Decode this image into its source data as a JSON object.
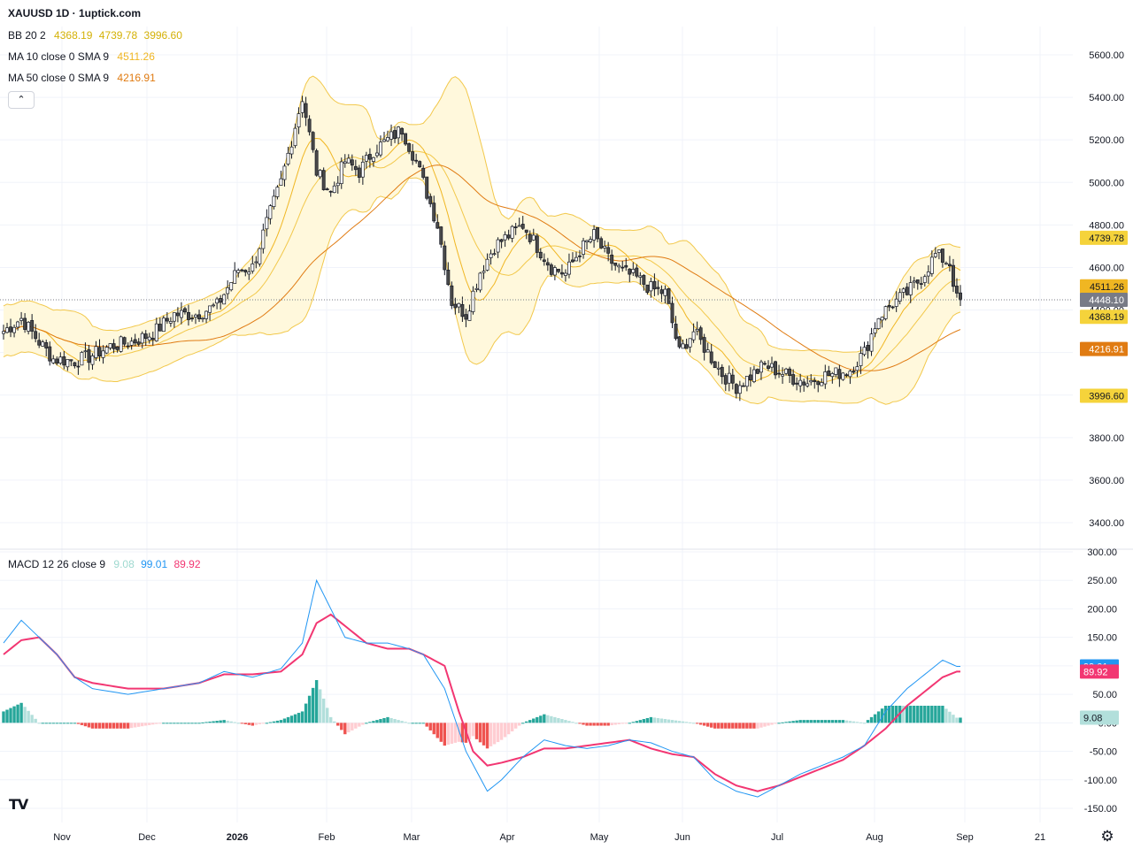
{
  "header": {
    "title": "XAUUSD 1D · 1uptick.com"
  },
  "legends": {
    "bb": {
      "label": "BB 20 2",
      "values": [
        "4368.19",
        "4739.78",
        "3996.60"
      ],
      "color": "#d4b106"
    },
    "ma10": {
      "label": "MA 10 close 0 SMA 9",
      "value": "4511.26",
      "color": "#f0b622"
    },
    "ma50": {
      "label": "MA 50 close 0 SMA 9",
      "value": "4216.91",
      "color": "#e07b12"
    },
    "macd": {
      "label": "MACD 12 26 close 9",
      "values": [
        "9.08",
        "99.01",
        "89.92"
      ],
      "colors": [
        "#9fd9d0",
        "#2196f3",
        "#f23672"
      ]
    }
  },
  "controls": {
    "collapse_icon": "chevron-up-icon",
    "logo": "tradingview-logo",
    "settings_icon": "gear-icon",
    "collapse_glyph": "⌃",
    "logo_text": "TV",
    "gear_glyph": "⚙"
  },
  "colors": {
    "up": "#ffffff",
    "down": "#4a4a4a",
    "wick": "#131722",
    "band_fill": "#fff8dc",
    "band_line": "#f2c84b",
    "ma10": "#f0b622",
    "ma50": "#e07b12",
    "hist_pos_strong": "#26a69a",
    "hist_pos_weak": "#b2dfdb",
    "hist_neg_strong": "#ef5350",
    "hist_neg_weak": "#ffcdd2"
  },
  "chart_data": [
    {
      "type": "candlestick",
      "title": "XAUUSD 1D",
      "ylim": [
        3400,
        5600
      ],
      "yticks": [
        "5600.00",
        "5400.00",
        "5200.00",
        "5000.00",
        "4800.00",
        "4600.00",
        "4400.00",
        "4200.00",
        "4000.00",
        "3800.00",
        "3600.00",
        "3400.00"
      ],
      "xticks": [
        "Nov",
        "Dec",
        "2026",
        "Feb",
        "Mar",
        "Apr",
        "May",
        "Jun",
        "Jul",
        "Aug",
        "Sep",
        "21"
      ],
      "series_keypoints": {
        "close": [
          [
            0,
            4300
          ],
          [
            5,
            4360
          ],
          [
            10,
            4250
          ],
          [
            14,
            4170
          ],
          [
            20,
            4160
          ],
          [
            24,
            4180
          ],
          [
            30,
            4230
          ],
          [
            36,
            4250
          ],
          [
            42,
            4290
          ],
          [
            48,
            4380
          ],
          [
            54,
            4380
          ],
          [
            60,
            4420
          ],
          [
            66,
            4590
          ],
          [
            70,
            4600
          ],
          [
            74,
            4810
          ],
          [
            78,
            5000
          ],
          [
            84,
            5400
          ],
          [
            88,
            5050
          ],
          [
            92,
            4950
          ],
          [
            96,
            5100
          ],
          [
            100,
            5050
          ],
          [
            104,
            5150
          ],
          [
            108,
            5200
          ],
          [
            112,
            5250
          ],
          [
            116,
            5100
          ],
          [
            122,
            4800
          ],
          [
            126,
            4440
          ],
          [
            130,
            4380
          ],
          [
            134,
            4580
          ],
          [
            138,
            4700
          ],
          [
            142,
            4750
          ],
          [
            146,
            4800
          ],
          [
            150,
            4700
          ],
          [
            154,
            4600
          ],
          [
            158,
            4570
          ],
          [
            162,
            4680
          ],
          [
            166,
            4750
          ],
          [
            170,
            4640
          ],
          [
            174,
            4580
          ],
          [
            178,
            4550
          ],
          [
            182,
            4500
          ],
          [
            186,
            4480
          ],
          [
            190,
            4200
          ],
          [
            194,
            4300
          ],
          [
            198,
            4200
          ],
          [
            202,
            4100
          ],
          [
            206,
            4040
          ],
          [
            210,
            4090
          ],
          [
            214,
            4140
          ],
          [
            218,
            4110
          ],
          [
            222,
            4080
          ],
          [
            226,
            4060
          ],
          [
            230,
            4090
          ],
          [
            234,
            4100
          ],
          [
            238,
            4120
          ],
          [
            242,
            4200
          ],
          [
            246,
            4370
          ],
          [
            250,
            4430
          ],
          [
            254,
            4480
          ],
          [
            258,
            4550
          ],
          [
            262,
            4660
          ],
          [
            266,
            4620
          ],
          [
            268,
            4450
          ]
        ]
      },
      "last_values": {
        "close": "4448.10",
        "bb_upper": "4739.78",
        "bb_basis": "4368.19",
        "bb_lower": "3996.60",
        "ma10": "4511.26",
        "ma50": "4216.91"
      },
      "price_labels": [
        {
          "value": "4739.78",
          "color": "#f5d33b"
        },
        {
          "value": "4511.26",
          "color": "#f0b622"
        },
        {
          "value": "4448.10",
          "color": "#787b86"
        },
        {
          "value": "4368.19",
          "color": "#f5d33b"
        },
        {
          "value": "4216.91",
          "color": "#e07b12"
        },
        {
          "value": "3996.60",
          "color": "#f5d33b"
        }
      ]
    },
    {
      "type": "macd",
      "title": "MACD 12 26 close 9",
      "ylim": [
        -150,
        300
      ],
      "yticks": [
        "300.00",
        "250.00",
        "200.00",
        "150.00",
        "100.00",
        "50.00",
        "0.00",
        "-50.00",
        "-100.00",
        "-150.00"
      ],
      "macd_keypoints": [
        [
          0,
          140
        ],
        [
          5,
          180
        ],
        [
          10,
          150
        ],
        [
          15,
          120
        ],
        [
          20,
          80
        ],
        [
          25,
          60
        ],
        [
          35,
          50
        ],
        [
          45,
          60
        ],
        [
          55,
          70
        ],
        [
          62,
          90
        ],
        [
          70,
          80
        ],
        [
          78,
          95
        ],
        [
          84,
          140
        ],
        [
          88,
          250
        ],
        [
          92,
          200
        ],
        [
          96,
          150
        ],
        [
          102,
          140
        ],
        [
          108,
          140
        ],
        [
          114,
          130
        ],
        [
          118,
          120
        ],
        [
          124,
          60
        ],
        [
          130,
          -50
        ],
        [
          136,
          -120
        ],
        [
          140,
          -100
        ],
        [
          146,
          -60
        ],
        [
          152,
          -30
        ],
        [
          158,
          -40
        ],
        [
          164,
          -45
        ],
        [
          170,
          -40
        ],
        [
          176,
          -30
        ],
        [
          182,
          -35
        ],
        [
          188,
          -50
        ],
        [
          194,
          -60
        ],
        [
          200,
          -100
        ],
        [
          206,
          -120
        ],
        [
          212,
          -130
        ],
        [
          218,
          -110
        ],
        [
          224,
          -90
        ],
        [
          230,
          -75
        ],
        [
          236,
          -60
        ],
        [
          242,
          -40
        ],
        [
          248,
          20
        ],
        [
          254,
          60
        ],
        [
          260,
          90
        ],
        [
          264,
          110
        ],
        [
          268,
          99
        ]
      ],
      "signal_keypoints": [
        [
          0,
          120
        ],
        [
          5,
          145
        ],
        [
          10,
          150
        ],
        [
          15,
          120
        ],
        [
          20,
          80
        ],
        [
          25,
          70
        ],
        [
          35,
          60
        ],
        [
          45,
          60
        ],
        [
          55,
          70
        ],
        [
          62,
          85
        ],
        [
          70,
          85
        ],
        [
          78,
          90
        ],
        [
          84,
          120
        ],
        [
          88,
          175
        ],
        [
          92,
          190
        ],
        [
          96,
          170
        ],
        [
          102,
          140
        ],
        [
          108,
          130
        ],
        [
          114,
          130
        ],
        [
          118,
          120
        ],
        [
          124,
          100
        ],
        [
          128,
          20
        ],
        [
          132,
          -50
        ],
        [
          136,
          -75
        ],
        [
          140,
          -70
        ],
        [
          146,
          -60
        ],
        [
          152,
          -45
        ],
        [
          158,
          -45
        ],
        [
          164,
          -40
        ],
        [
          170,
          -35
        ],
        [
          176,
          -30
        ],
        [
          182,
          -45
        ],
        [
          188,
          -55
        ],
        [
          194,
          -60
        ],
        [
          200,
          -90
        ],
        [
          206,
          -110
        ],
        [
          212,
          -120
        ],
        [
          218,
          -110
        ],
        [
          224,
          -95
        ],
        [
          230,
          -80
        ],
        [
          236,
          -65
        ],
        [
          242,
          -40
        ],
        [
          248,
          -10
        ],
        [
          254,
          30
        ],
        [
          260,
          60
        ],
        [
          264,
          80
        ],
        [
          268,
          90
        ]
      ],
      "last_values": {
        "histogram": "9.08",
        "macd": "99.01",
        "signal": "89.92"
      }
    }
  ]
}
